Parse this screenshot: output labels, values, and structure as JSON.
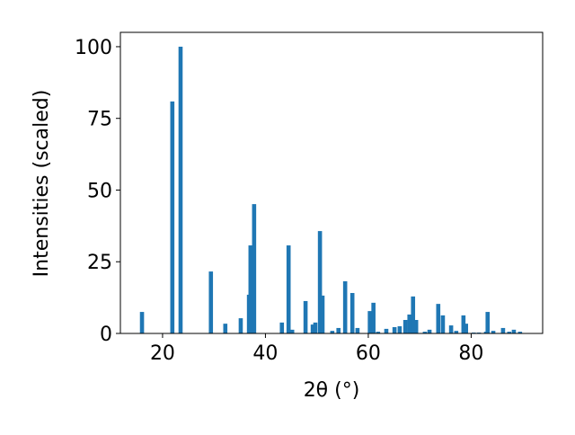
{
  "chart_data": {
    "type": "bar",
    "xlabel": "2θ (°)",
    "ylabel": "Intensities (scaled)",
    "color": "#1f77b4",
    "x": [
      16.0,
      21.9,
      23.5,
      29.4,
      32.2,
      35.2,
      36.8,
      37.1,
      37.8,
      43.2,
      44.5,
      45.2,
      47.8,
      49.2,
      49.7,
      50.6,
      51.1,
      53.0,
      54.2,
      55.5,
      56.9,
      57.9,
      60.3,
      61.0,
      61.9,
      63.5,
      65.1,
      66.1,
      67.2,
      68.0,
      68.7,
      69.3,
      71.0,
      71.9,
      73.6,
      74.5,
      76.1,
      77.1,
      78.5,
      79.0,
      80.5,
      81.5,
      82.9,
      83.2,
      84.3,
      86.2,
      87.4,
      88.3,
      89.5
    ],
    "values": [
      7.5,
      80.9,
      100,
      21.6,
      3.4,
      5.3,
      13.5,
      30.7,
      45.1,
      3.8,
      30.7,
      1.3,
      11.3,
      3.1,
      3.8,
      35.7,
      13.2,
      0.9,
      1.9,
      18.2,
      14.1,
      1.9,
      7.8,
      10.7,
      0.6,
      1.6,
      2.2,
      2.5,
      4.7,
      6.6,
      12.9,
      4.7,
      0.6,
      1.3,
      10.3,
      6.3,
      2.8,
      0.9,
      6.3,
      3.4,
      0.3,
      0.3,
      0.6,
      7.5,
      0.9,
      1.9,
      0.6,
      1.3,
      0.6
    ],
    "xlim": [
      11.8,
      93.9
    ],
    "ylim": [
      0,
      105
    ],
    "xticks": [
      20,
      40,
      60,
      80
    ],
    "yticks": [
      0,
      25,
      50,
      75,
      100
    ],
    "grid": false
  }
}
